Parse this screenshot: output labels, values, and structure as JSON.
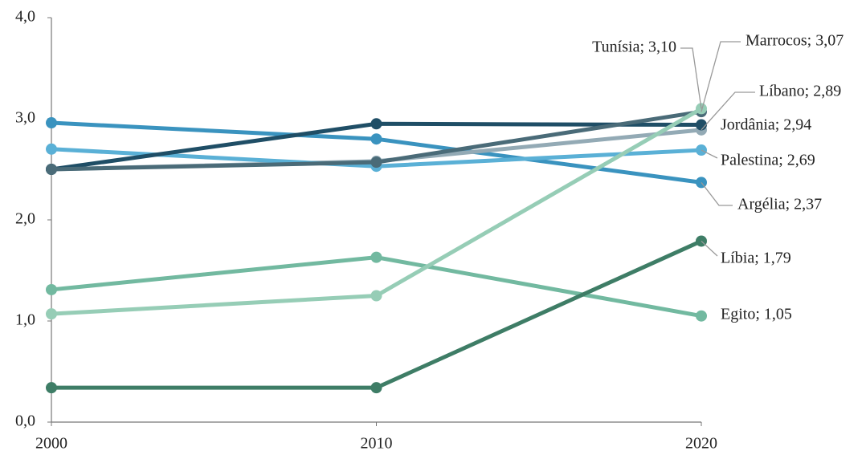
{
  "chart_data": {
    "type": "line",
    "x": [
      2000,
      2010,
      2020
    ],
    "xlim": [
      2000,
      2020
    ],
    "xticks": [
      2000,
      2010,
      2020
    ],
    "ylim": [
      0,
      4
    ],
    "yticks": [
      {
        "value": 0,
        "label": "0,0"
      },
      {
        "value": 1,
        "label": "1,0"
      },
      {
        "value": 2,
        "label": "2,0"
      },
      {
        "value": 3,
        "label": "3,0"
      },
      {
        "value": 4,
        "label": "4,0"
      }
    ],
    "series": [
      {
        "name": "Argélia",
        "color": "#3a93bf",
        "values": [
          2.96,
          2.8,
          2.37
        ],
        "value_labels": [
          null,
          null,
          "Argélia; 2,37"
        ]
      },
      {
        "name": "Egito",
        "color": "#72b9a0",
        "values": [
          1.31,
          1.63,
          1.05
        ],
        "value_labels": [
          null,
          null,
          "Egito; 1,05"
        ]
      },
      {
        "name": "Líbano",
        "color": "#93aab5",
        "values": [
          2.5,
          2.58,
          2.89
        ],
        "value_labels": [
          null,
          null,
          "Líbano; 2,89"
        ]
      },
      {
        "name": "Palestina",
        "color": "#5ab0d6",
        "values": [
          2.7,
          2.53,
          2.69
        ],
        "value_labels": [
          null,
          null,
          "Palestina; 2,69"
        ]
      },
      {
        "name": "Jordânia",
        "color": "#1f4e66",
        "values": [
          2.5,
          2.95,
          2.94
        ],
        "value_labels": [
          null,
          null,
          "Jordânia; 2,94"
        ]
      },
      {
        "name": "Marrocos",
        "color": "#4a6b78",
        "values": [
          2.5,
          2.57,
          3.07
        ],
        "value_labels": [
          null,
          null,
          "Marrocos; 3,07"
        ]
      },
      {
        "name": "Líbia",
        "color": "#3e7d66",
        "values": [
          0.34,
          0.34,
          1.79
        ],
        "value_labels": [
          null,
          null,
          "Líbia; 1,79"
        ]
      },
      {
        "name": "Tunísia",
        "color": "#96cdb6",
        "values": [
          1.07,
          1.25,
          3.1
        ],
        "value_labels": [
          null,
          null,
          "Tunísia; 3,10"
        ]
      }
    ]
  }
}
